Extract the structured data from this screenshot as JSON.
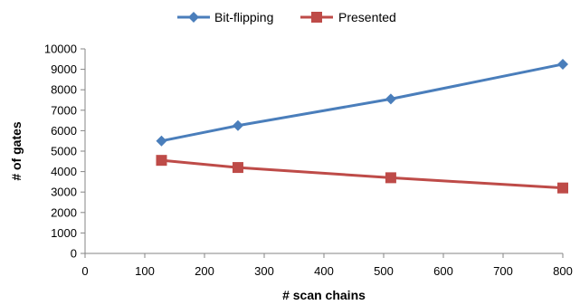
{
  "chart_data": {
    "type": "line",
    "title": "",
    "xlabel": "# scan chains",
    "ylabel": "# of gates",
    "xlim": [
      0,
      800
    ],
    "ylim": [
      0,
      10000
    ],
    "xticks": [
      0,
      100,
      200,
      300,
      400,
      500,
      600,
      700,
      800
    ],
    "yticks": [
      0,
      1000,
      2000,
      3000,
      4000,
      5000,
      6000,
      7000,
      8000,
      9000,
      10000
    ],
    "grid": false,
    "legend_position": "top",
    "series": [
      {
        "name": "Bit-flipping",
        "color": "#4a7ebb",
        "marker": "diamond",
        "x": [
          128,
          256,
          512,
          800
        ],
        "y": [
          5500,
          6250,
          7550,
          9250
        ]
      },
      {
        "name": "Presented",
        "color": "#be4b48",
        "marker": "square",
        "x": [
          128,
          256,
          512,
          800
        ],
        "y": [
          4550,
          4200,
          3700,
          3200
        ]
      }
    ]
  }
}
